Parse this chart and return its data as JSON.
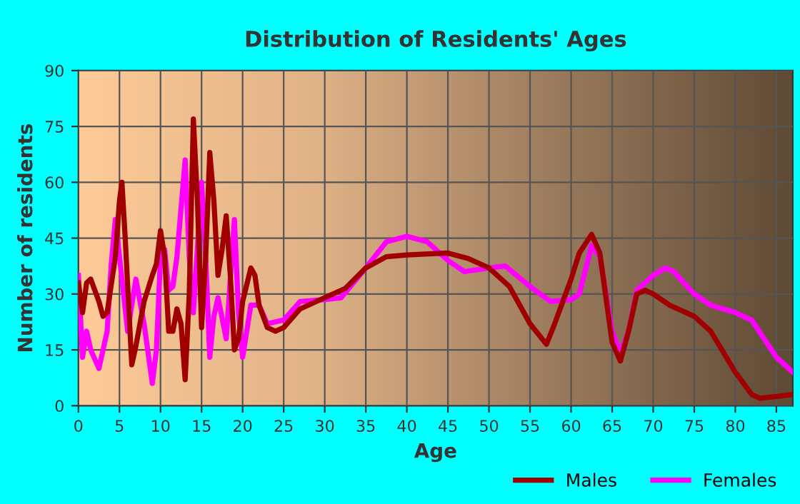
{
  "chart_data": {
    "type": "line",
    "title": "Distribution of Residents' Ages",
    "xlabel": "Age",
    "ylabel": "Number of residents",
    "xlim": [
      0,
      87
    ],
    "xticks": [
      0,
      5,
      10,
      15,
      20,
      25,
      30,
      35,
      40,
      45,
      50,
      55,
      60,
      65,
      70,
      75,
      80,
      85
    ],
    "ylim": [
      0,
      90
    ],
    "yticks": [
      0,
      15,
      30,
      45,
      60,
      75,
      90
    ],
    "grid": true,
    "legend": "bottom right",
    "marker": "none",
    "line_style": "solid",
    "series": [
      {
        "name": "Males",
        "color": "#a00000",
        "x": [
          0,
          0.5,
          1,
          1.5,
          2.5,
          3,
          3.5,
          4.5,
          5,
          5.3,
          5.7,
          6.5,
          7,
          8,
          9,
          9.5,
          10,
          10.5,
          11,
          11.5,
          12,
          12.5,
          13,
          13.5,
          14,
          14.5,
          15,
          15.5,
          16,
          16.5,
          17,
          17.5,
          18,
          18.5,
          19,
          19.5,
          20,
          21,
          21.5,
          22,
          23,
          24,
          25,
          27,
          30,
          32.5,
          35,
          37.5,
          40,
          45,
          47.5,
          50,
          52.5,
          55,
          57,
          58,
          60,
          61,
          62.5,
          63.5,
          65,
          66,
          67,
          68,
          69,
          70,
          72,
          75,
          77,
          80,
          82,
          83,
          85,
          87
        ],
        "values": [
          33,
          25,
          33,
          34,
          28,
          24,
          25,
          40,
          55,
          60,
          45,
          11,
          16,
          28,
          35,
          38,
          47,
          40,
          20,
          20,
          26,
          22,
          7,
          30,
          77,
          55,
          21,
          40,
          68,
          55,
          35,
          42,
          51,
          35,
          15,
          18,
          28,
          37,
          35,
          27,
          21,
          20,
          21,
          26,
          29,
          31.5,
          37,
          40,
          40.5,
          41,
          39.5,
          37,
          32,
          22,
          16.5,
          22,
          34,
          41,
          46,
          41,
          17,
          12,
          20,
          30,
          31,
          30,
          27,
          24,
          20,
          9,
          3,
          2,
          2.5,
          3
        ]
      },
      {
        "name": "Females",
        "color": "#ff00ff",
        "x": [
          0,
          0.5,
          1,
          1.5,
          2.5,
          3.5,
          4,
          4.5,
          5,
          6,
          7,
          8,
          9,
          9.5,
          10,
          10.5,
          11,
          11.5,
          12,
          13,
          13.5,
          14,
          15,
          15.5,
          16,
          16.5,
          17,
          18,
          19,
          19.5,
          20,
          20.5,
          21,
          22,
          23,
          25,
          27,
          30,
          32,
          35,
          37.5,
          40,
          42.5,
          45,
          47,
          50,
          52,
          55,
          57.5,
          60,
          61,
          62.5,
          63.5,
          65,
          66,
          67,
          68,
          70,
          71.5,
          72.5,
          75,
          77,
          80,
          82,
          85,
          87
        ],
        "values": [
          35,
          13,
          20,
          15,
          10,
          20,
          38,
          50,
          40,
          20,
          34,
          22,
          6,
          15,
          40,
          42,
          31,
          32,
          40,
          66,
          40,
          25,
          60,
          40,
          13,
          24,
          29,
          18,
          50,
          25,
          13,
          20,
          27,
          27,
          22,
          23,
          28,
          28.5,
          29,
          37,
          44,
          45.5,
          44,
          39,
          36,
          37,
          37.5,
          32,
          28,
          28.5,
          30,
          43,
          40,
          20,
          14,
          20,
          31,
          35,
          37,
          36,
          30,
          27,
          25,
          23,
          13,
          9
        ]
      }
    ]
  }
}
